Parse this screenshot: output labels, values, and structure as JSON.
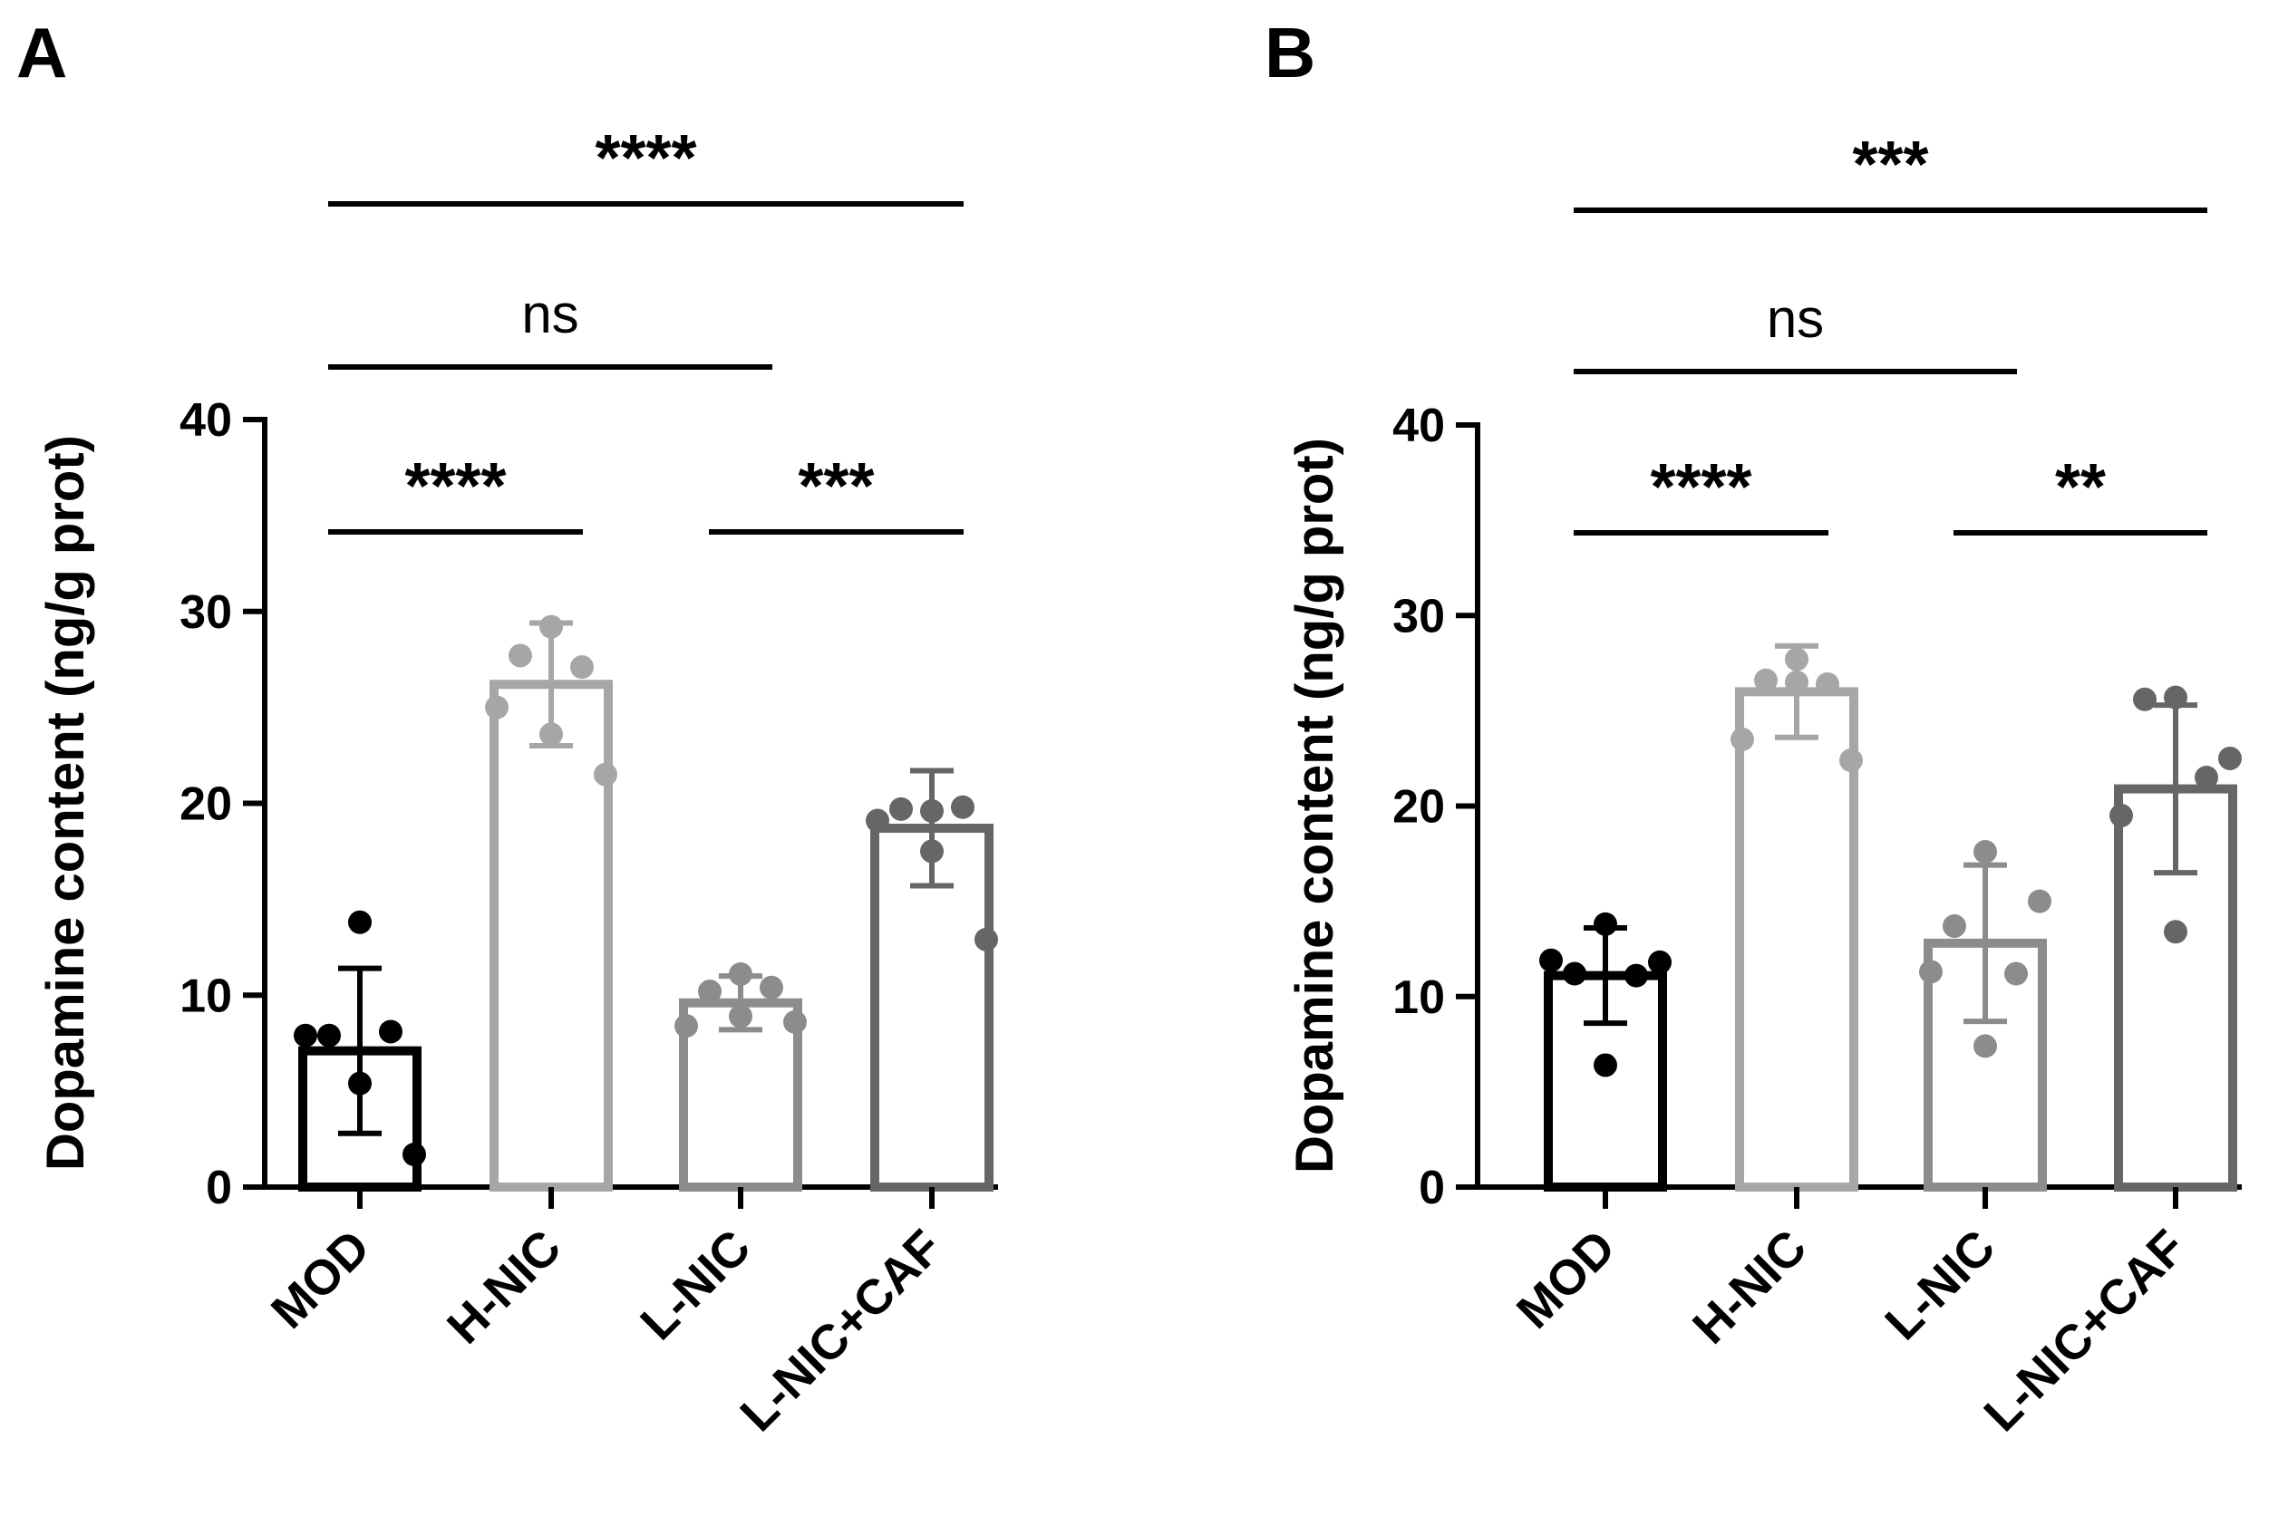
{
  "panels": [
    {
      "panel_label": "A",
      "chart_data": {
        "type": "bar",
        "ylabel": "Dopamine content (ng/g prot)",
        "ylim": [
          0,
          40
        ],
        "yticks": [
          "0",
          "10",
          "20",
          "30",
          "40"
        ],
        "categories": [
          "MOD",
          "H-NIC",
          "L-NIC",
          "L-NIC+CAF"
        ],
        "colors": [
          "#000000",
          "#a6a6a6",
          "#8c8c8c",
          "#666666"
        ],
        "means": [
          7.1,
          26.2,
          9.6,
          18.7
        ],
        "sd": [
          4.3,
          3.2,
          1.4,
          3.0
        ],
        "points": [
          [
            13.8,
            7.9,
            8.1,
            7.9,
            5.4,
            1.7
          ],
          [
            29.2,
            27.7,
            27.1,
            25.0,
            23.6,
            21.5
          ],
          [
            11.1,
            10.2,
            10.4,
            8.4,
            8.9,
            8.6
          ],
          [
            19.6,
            19.7,
            19.8,
            19.1,
            17.5,
            12.9
          ]
        ],
        "significance": [
          {
            "from": 0,
            "to": 3,
            "label": "****",
            "level": "top"
          },
          {
            "from": 0,
            "to": 2,
            "label": "ns",
            "level": "middle"
          },
          {
            "from": 0,
            "to": 1,
            "label": "****",
            "level": "low"
          },
          {
            "from": 2,
            "to": 3,
            "label": "***",
            "level": "low"
          }
        ]
      }
    },
    {
      "panel_label": "B",
      "chart_data": {
        "type": "bar",
        "ylabel": "Dopamine content (ng/g prot)",
        "ylim": [
          0,
          40
        ],
        "yticks": [
          "0",
          "10",
          "20",
          "30",
          "40"
        ],
        "categories": [
          "MOD",
          "H-NIC",
          "L-NIC",
          "L-NIC+CAF"
        ],
        "colors": [
          "#000000",
          "#a6a6a6",
          "#8c8c8c",
          "#666666"
        ],
        "means": [
          11.1,
          26.0,
          12.8,
          20.9
        ],
        "sd": [
          2.5,
          2.4,
          4.1,
          4.4
        ],
        "points": [
          [
            13.8,
            11.2,
            11.1,
            11.9,
            6.4,
            11.8
          ],
          [
            27.7,
            26.6,
            26.4,
            23.5,
            26.5,
            22.4
          ],
          [
            17.6,
            13.7,
            11.2,
            11.3,
            7.4,
            15.0
          ],
          [
            25.7,
            25.6,
            21.5,
            19.5,
            13.4,
            22.5
          ]
        ],
        "significance": [
          {
            "from": 0,
            "to": 3,
            "label": "***",
            "level": "top"
          },
          {
            "from": 0,
            "to": 2,
            "label": "ns",
            "level": "middle"
          },
          {
            "from": 0,
            "to": 1,
            "label": "****",
            "level": "low"
          },
          {
            "from": 2,
            "to": 3,
            "label": "**",
            "level": "low"
          }
        ]
      }
    }
  ]
}
